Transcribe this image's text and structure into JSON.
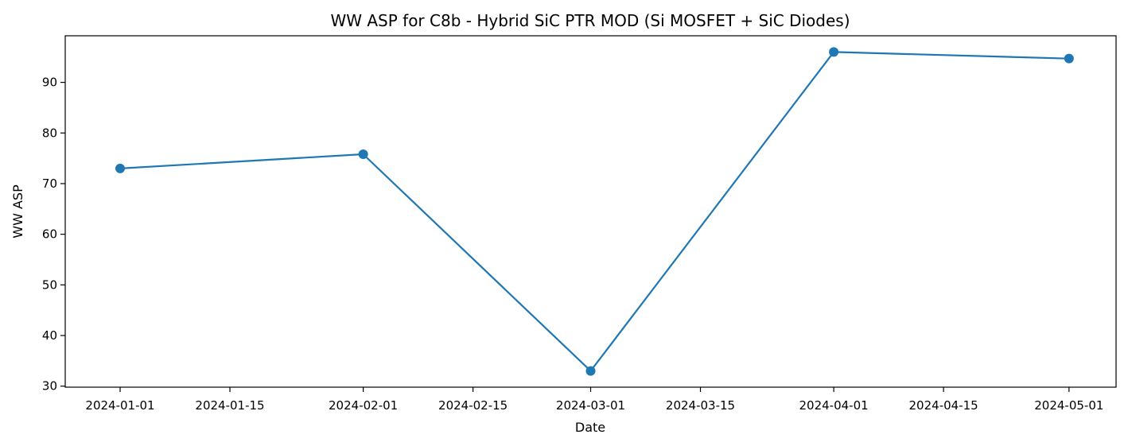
{
  "chart_data": {
    "type": "line",
    "title": "WW ASP for C8b - Hybrid SiC PTR MOD (Si MOSFET + SiC Diodes)",
    "xlabel": "Date",
    "ylabel": "WW ASP",
    "x_ticks": [
      "2024-01-01",
      "2024-01-15",
      "2024-02-01",
      "2024-02-15",
      "2024-03-01",
      "2024-03-15",
      "2024-04-01",
      "2024-04-15",
      "2024-05-01"
    ],
    "y_ticks": [
      30,
      40,
      50,
      60,
      70,
      80,
      90
    ],
    "xlim": [
      "2023-12-25",
      "2024-05-07"
    ],
    "ylim": [
      29.8,
      99.2
    ],
    "grid": false,
    "legend": "none",
    "series": [
      {
        "color": "#1f77b4",
        "marker": "circle",
        "points": [
          {
            "x": "2024-01-01",
            "y": 73.0
          },
          {
            "x": "2024-02-01",
            "y": 75.8
          },
          {
            "x": "2024-03-01",
            "y": 33.0
          },
          {
            "x": "2024-04-01",
            "y": 96.0
          },
          {
            "x": "2024-05-01",
            "y": 94.7
          }
        ]
      }
    ]
  }
}
